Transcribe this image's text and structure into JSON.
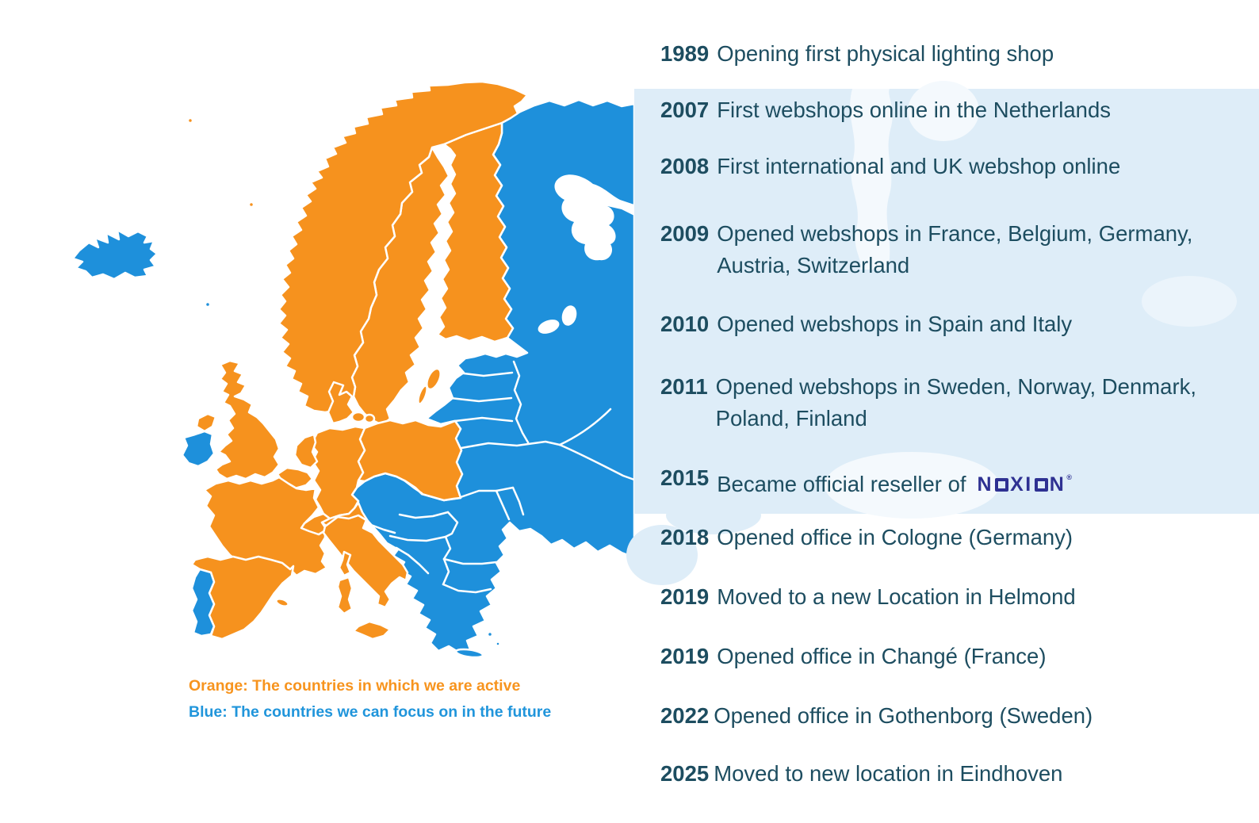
{
  "timeline": {
    "items": [
      {
        "year": "1989",
        "text": "Opening first physical lighting shop"
      },
      {
        "year": "2007",
        "text": "First webshops online in the Netherlands"
      },
      {
        "year": "2008",
        "text": "First international and UK webshop online"
      },
      {
        "year": "2009",
        "text": "Opened webshops in France, Belgium, Germany,",
        "text2": "Austria, Switzerland"
      },
      {
        "year": "2010",
        "text": "Opened webshops in Spain and Italy"
      },
      {
        "year": "2011",
        "text": "Opened webshops in Sweden, Norway, Denmark,",
        "text2": "Poland, Finland"
      },
      {
        "year": "2015",
        "text": "Became official reseller of",
        "logo": true
      },
      {
        "year": "2018",
        "text": "Opened office in Cologne (Germany)"
      },
      {
        "year": "2019",
        "text": "Moved to a new Location in Helmond"
      },
      {
        "year": "2019",
        "text": "Opened office in Changé (France)"
      },
      {
        "year": "2022",
        "text": "Opened office in Gothenborg (Sweden)",
        "tight": true
      },
      {
        "year": "2025",
        "text": "Moved to new location in Eindhoven",
        "tight": true
      }
    ],
    "text_color": "#1d4d60"
  },
  "brand": {
    "logo_text": "NOXION",
    "registered": "®",
    "logo_color": "#2E3192"
  },
  "legend": {
    "orange_label": "Orange: The countries in which we are active",
    "blue_label": "Blue: The countries we can focus on in the future",
    "orange_color": "#F7941E",
    "blue_color": "#2095DB"
  },
  "map": {
    "active_color": "#F6921E",
    "future_color": "#1E90DB",
    "faded_color": "#DEEDF8",
    "faded_sea_color": "#F4F9FD",
    "border_color": "#FFFFFF",
    "active_countries": [
      "Norway",
      "Sweden",
      "Finland",
      "Denmark",
      "United Kingdom",
      "Netherlands",
      "Belgium",
      "Germany",
      "Poland",
      "France",
      "Switzerland",
      "Austria",
      "Italy",
      "Spain"
    ],
    "future_countries": [
      "Iceland",
      "Ireland",
      "Portugal",
      "Czechia",
      "Slovakia",
      "Hungary",
      "Slovenia",
      "Croatia",
      "Bosnia and Herzegovina",
      "Serbia",
      "Montenegro",
      "Albania",
      "North Macedonia",
      "Greece",
      "Romania",
      "Bulgaria",
      "Moldova",
      "Ukraine",
      "Belarus",
      "Lithuania",
      "Latvia",
      "Estonia",
      "Russia"
    ]
  }
}
